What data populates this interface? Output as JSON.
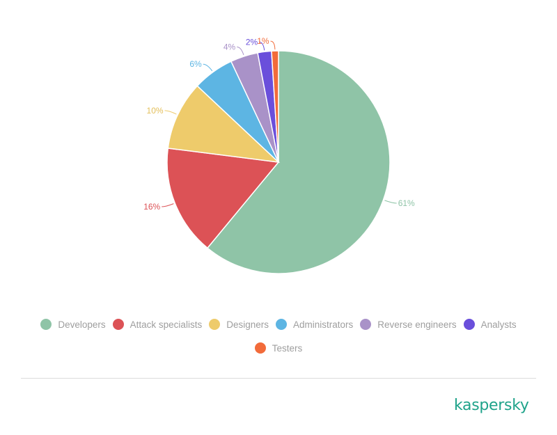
{
  "chart_data": {
    "type": "pie",
    "title": "",
    "categories": [
      "Developers",
      "Attack specialists",
      "Designers",
      "Administrators",
      "Reverse engineers",
      "Analysts",
      "Testers"
    ],
    "values": [
      61,
      16,
      10,
      6,
      4,
      2,
      1
    ],
    "labels": [
      "61%",
      "16%",
      "10%",
      "6%",
      "4%",
      "2%",
      "1%"
    ],
    "colors": [
      "#8fc4a7",
      "#dc5256",
      "#eecb6b",
      "#5db5e3",
      "#a992c8",
      "#6a4fdb",
      "#f26b3a"
    ],
    "start_angle": "12 o'clock",
    "direction": "clockwise",
    "legend_position": "bottom"
  },
  "legend": {
    "items": [
      {
        "label": "Developers",
        "color": "#8fc4a7"
      },
      {
        "label": "Attack specialists",
        "color": "#dc5256"
      },
      {
        "label": "Designers",
        "color": "#eecb6b"
      },
      {
        "label": "Administrators",
        "color": "#5db5e3"
      },
      {
        "label": "Reverse engineers",
        "color": "#a992c8"
      },
      {
        "label": "Analysts",
        "color": "#6a4fdb"
      },
      {
        "label": "Testers",
        "color": "#f26b3a"
      }
    ]
  },
  "brand": {
    "logo_text": "kaspersky",
    "color": "#1fa38a"
  }
}
